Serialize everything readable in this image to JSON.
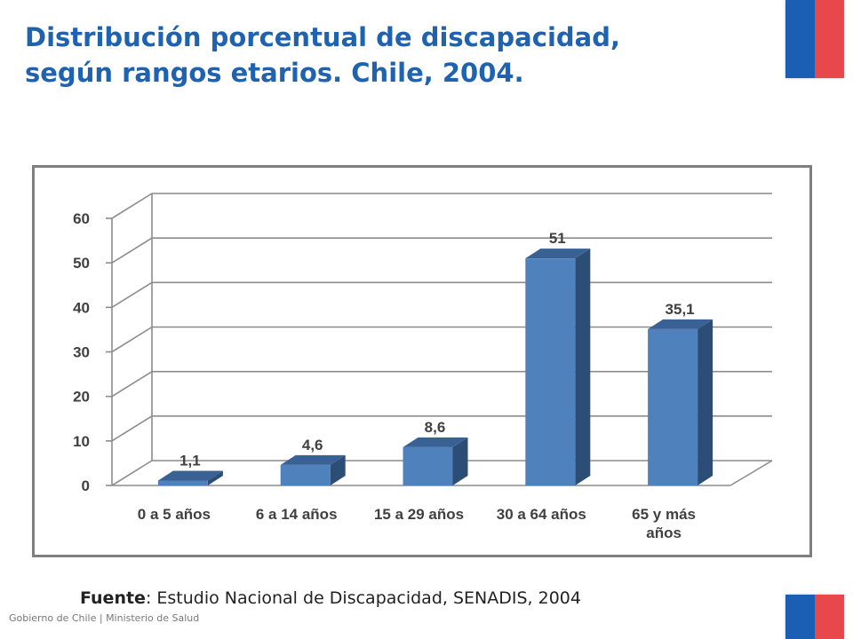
{
  "header": {
    "title_line1": "Distribución porcentual de discapacidad,",
    "title_line2": "según rangos etarios. Chile, 2004."
  },
  "colors": {
    "title": "#1f63b0",
    "bar_front": "#4f81bd",
    "bar_side": "#2c4d75",
    "bar_top": "#3a6193",
    "flag_blue": "#1a5fb4",
    "flag_red": "#e8474b"
  },
  "chart_data": {
    "type": "bar",
    "categories": [
      "0 a 5 años",
      "6 a 14 años",
      "15 a 29 años",
      "30 a 64 años",
      "65 y más años"
    ],
    "category_lines": [
      [
        "0 a 5 años"
      ],
      [
        "6 a 14 años"
      ],
      [
        "15 a 29 años"
      ],
      [
        "30 a 64 años"
      ],
      [
        "65 y más",
        "años"
      ]
    ],
    "values": [
      1.1,
      4.6,
      8.6,
      51,
      35.1
    ],
    "value_labels": [
      "1,1",
      "4,6",
      "8,6",
      "51",
      "35,1"
    ],
    "yticks": [
      0,
      10,
      20,
      30,
      40,
      50,
      60
    ],
    "ylim": [
      0,
      60
    ],
    "grid": true,
    "style": "3d-bar"
  },
  "source": {
    "label": "Fuente",
    "text": ": Estudio Nacional de Discapacidad, SENADIS, 2004"
  },
  "footer": {
    "text": "Gobierno de Chile | Ministerio de Salud"
  }
}
